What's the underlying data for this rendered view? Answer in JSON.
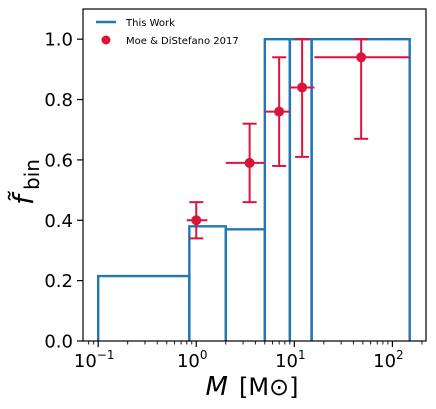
{
  "chart_data": {
    "type": "step-histogram-with-errorbars",
    "xscale": "log",
    "xlim": [
      0.07,
      220
    ],
    "ylim": [
      0.0,
      1.1
    ],
    "xticks": [
      {
        "value": 0.1,
        "base": "10",
        "exp": "−1"
      },
      {
        "value": 1,
        "base": "10",
        "exp": "0"
      },
      {
        "value": 10,
        "base": "10",
        "exp": "1"
      },
      {
        "value": 100,
        "base": "10",
        "exp": "2"
      }
    ],
    "yticks": [
      "0.0",
      "0.2",
      "0.4",
      "0.6",
      "0.8",
      "1.0"
    ],
    "yticks_values": [
      0.0,
      0.2,
      0.4,
      0.6,
      0.8,
      1.0
    ],
    "xlabel": {
      "italic": "M",
      "unit": "[M⊙]"
    },
    "ylabel": {
      "main": "f̃",
      "sub": "bin"
    },
    "legend_position": "upper-left",
    "series": [
      {
        "name": "This Work",
        "kind": "step",
        "color": "#1f77b4",
        "bins": [
          {
            "x0": 0.1,
            "x1": 0.85,
            "y": 0.215
          },
          {
            "x0": 0.85,
            "x1": 2.0,
            "y": 0.38
          },
          {
            "x0": 2.0,
            "x1": 5.0,
            "y": 0.37
          },
          {
            "x0": 5.0,
            "x1": 9.0,
            "y": 1.0
          },
          {
            "x0": 9.0,
            "x1": 15.0,
            "y": 1.0
          },
          {
            "x0": 15.0,
            "x1": 150.0,
            "y": 1.0
          }
        ]
      },
      {
        "name": "Moe & DiStefano 2017",
        "kind": "errorbar",
        "color": "#dc143c",
        "points": [
          {
            "x": 1.0,
            "xlo": 0.8,
            "xhi": 1.3,
            "y": 0.4,
            "ylo": 0.34,
            "yhi": 0.46
          },
          {
            "x": 3.5,
            "xlo": 2.0,
            "xhi": 5.0,
            "y": 0.59,
            "ylo": 0.46,
            "yhi": 0.72
          },
          {
            "x": 7.0,
            "xlo": 5.0,
            "xhi": 9.0,
            "y": 0.76,
            "ylo": 0.58,
            "yhi": 0.94
          },
          {
            "x": 12.0,
            "xlo": 9.0,
            "xhi": 16.0,
            "y": 0.84,
            "ylo": 0.61,
            "yhi": 1.0
          },
          {
            "x": 48.0,
            "xlo": 16.0,
            "xhi": 150.0,
            "y": 0.94,
            "ylo": 0.67,
            "yhi": 1.0
          }
        ]
      }
    ]
  }
}
